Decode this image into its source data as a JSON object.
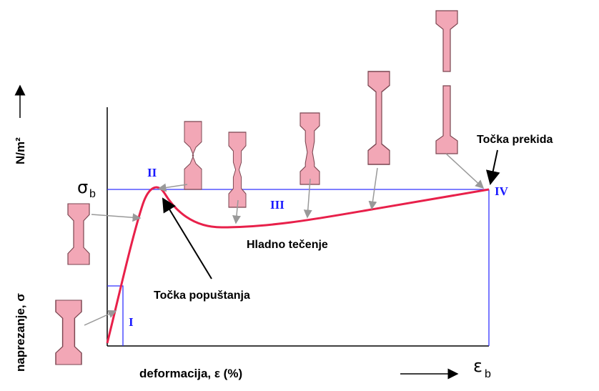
{
  "axes": {
    "y_label": "naprezanje, σ",
    "y_unit": "N/m²",
    "x_label": "deformacija, ε  (%)",
    "sigma": "σ",
    "sigma_sub": "b",
    "eps": "ε",
    "eps_sub": "b"
  },
  "regions": {
    "r1": "I",
    "r2": "II",
    "r3": "III",
    "r4": "IV"
  },
  "annotations": {
    "break_point": "Točka prekida",
    "yield_point": "Točka popuštanja",
    "cold_flow": "Hladno tečenje"
  }
}
